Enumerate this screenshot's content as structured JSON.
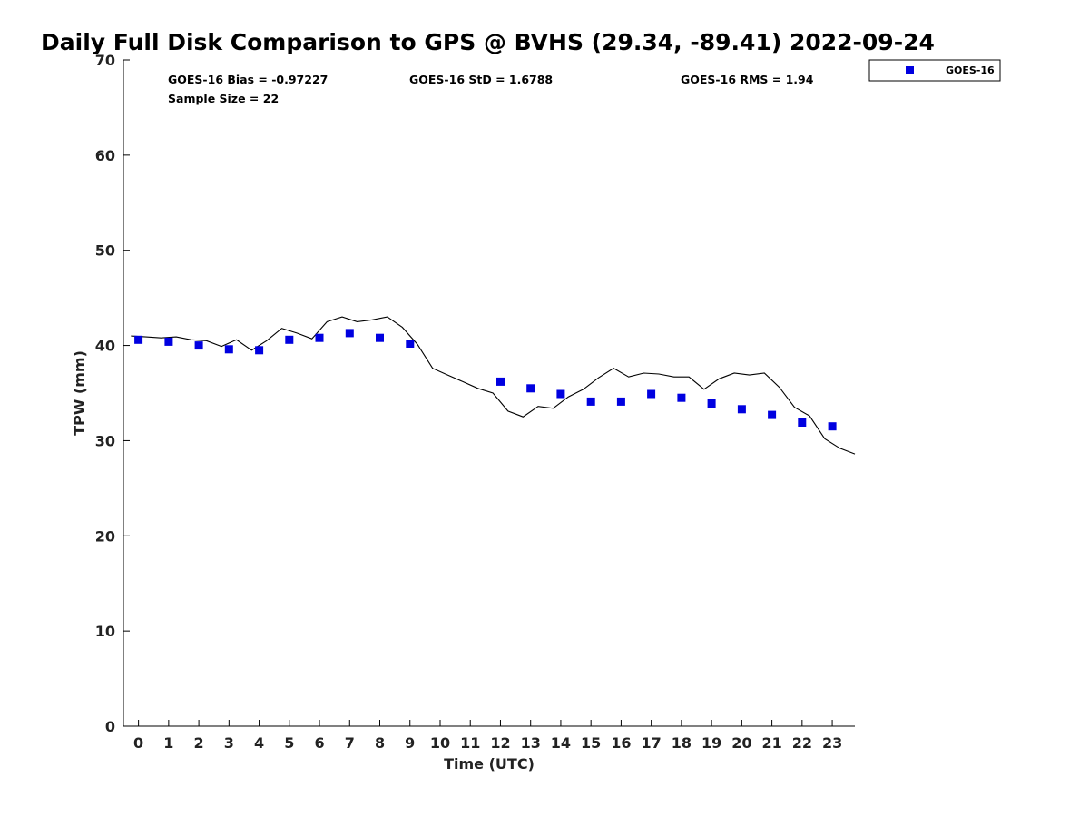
{
  "chart_data": {
    "type": "scatter",
    "title": "Daily Full Disk Comparison to GPS @ BVHS (29.34, -89.41) 2022-09-24",
    "xlabel": "Time (UTC)",
    "ylabel": "TPW (mm)",
    "xlim": [
      -0.5,
      23.75
    ],
    "ylim": [
      0,
      70
    ],
    "x_ticks": [
      0,
      1,
      2,
      3,
      4,
      5,
      6,
      7,
      8,
      9,
      10,
      11,
      12,
      13,
      14,
      15,
      16,
      17,
      18,
      19,
      20,
      21,
      22,
      23
    ],
    "y_ticks": [
      0,
      10,
      20,
      30,
      40,
      50,
      60,
      70
    ],
    "grid": false,
    "legend_position": "top-right outside",
    "colors": {
      "goes": "#0000e0",
      "gps": "#000000"
    },
    "stats": {
      "bias": "GOES-16 Bias = -0.97227",
      "std": "GOES-16 StD = 1.6788",
      "rms": "GOES-16 RMS = 1.94",
      "sample": "Sample Size = 22"
    },
    "series": [
      {
        "name": "GOES-16",
        "marker": "square",
        "x": [
          0,
          1,
          2,
          3,
          4,
          5,
          6,
          7,
          8,
          9,
          12,
          13,
          14,
          15,
          16,
          17,
          18,
          19,
          20,
          21,
          22,
          23
        ],
        "y": [
          40.6,
          40.4,
          40.0,
          39.6,
          39.5,
          40.6,
          40.8,
          41.3,
          40.8,
          40.2,
          36.2,
          35.5,
          34.9,
          34.1,
          34.1,
          34.9,
          34.5,
          33.9,
          33.3,
          32.7,
          31.9,
          31.5
        ]
      },
      {
        "marker": "line",
        "x": [
          -0.25,
          0.25,
          0.75,
          1.25,
          1.75,
          2.25,
          2.75,
          3.25,
          3.75,
          4.25,
          4.75,
          5.25,
          5.75,
          6.25,
          6.75,
          7.25,
          7.75,
          8.25,
          8.75,
          9.25,
          9.75,
          10.25,
          10.75,
          11.25,
          11.75,
          12.25,
          12.75,
          13.25,
          13.75,
          14.25,
          14.75,
          15.25,
          15.75,
          16.25,
          16.75,
          17.25,
          17.75,
          18.25,
          18.75,
          19.25,
          19.75,
          20.25,
          20.75,
          21.25,
          21.75,
          22.25,
          22.75,
          23.25,
          23.75
        ],
        "y": [
          41.0,
          40.9,
          40.8,
          40.9,
          40.6,
          40.5,
          39.9,
          40.6,
          39.5,
          40.5,
          41.8,
          41.3,
          40.7,
          42.5,
          43.0,
          42.5,
          42.7,
          43.0,
          41.9,
          40.1,
          37.6,
          36.9,
          36.2,
          35.5,
          35.0,
          33.1,
          32.5,
          33.6,
          33.4,
          34.6,
          35.4,
          36.6,
          37.6,
          36.7,
          37.1,
          37.0,
          36.7,
          36.7,
          35.4,
          36.5,
          37.1,
          36.9,
          37.1,
          35.6,
          33.5,
          32.6,
          30.2,
          29.2,
          28.6
        ]
      }
    ]
  }
}
